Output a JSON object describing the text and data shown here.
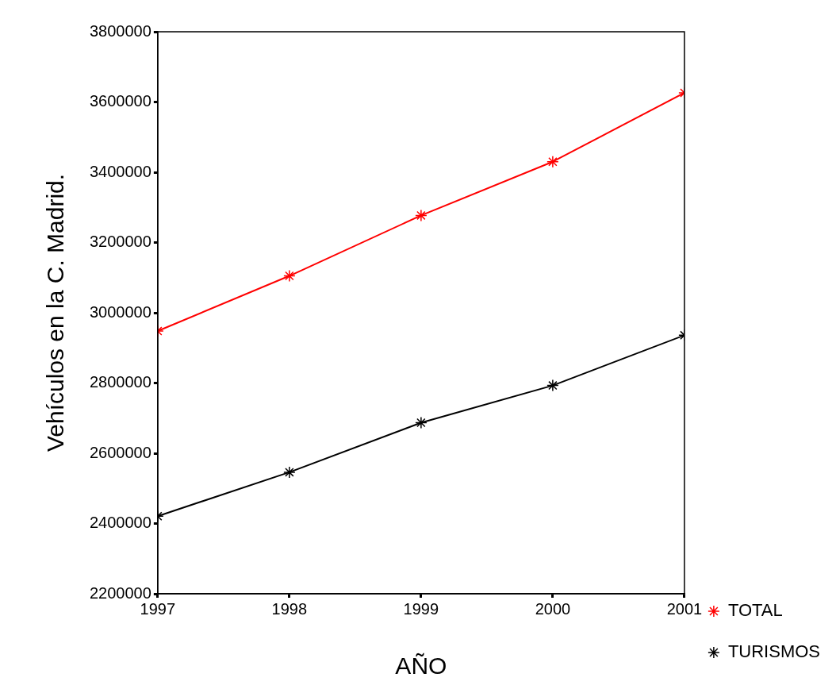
{
  "chart_data": {
    "type": "line",
    "xlabel": "AÑO",
    "ylabel": "Vehículos en la C. Madrid.",
    "x": [
      1997,
      1998,
      1999,
      2000,
      2001
    ],
    "series": [
      {
        "name": "TOTAL",
        "color": "#ff0000",
        "values": [
          2948000,
          3105000,
          3277000,
          3430000,
          3626000
        ]
      },
      {
        "name": "TURISMOS",
        "color": "#000000",
        "values": [
          2421000,
          2546000,
          2687000,
          2793000,
          2936000
        ]
      }
    ],
    "xlim": [
      1997,
      2001
    ],
    "xticks": [
      1997,
      1998,
      1999,
      2000,
      2001
    ],
    "ylim": [
      2200000,
      3800000
    ],
    "yticks": [
      2200000,
      2400000,
      2600000,
      2800000,
      3000000,
      3200000,
      3400000,
      3600000,
      3800000
    ],
    "grid": false,
    "legend": "bottom right",
    "marker": "cross",
    "line_style": "solid"
  }
}
